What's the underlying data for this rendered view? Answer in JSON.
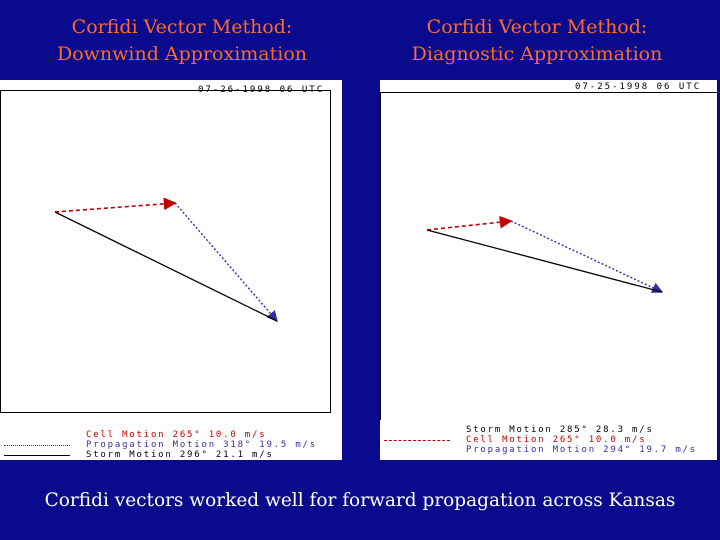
{
  "left_panel": {
    "title_line1": "Corfidi Vector Method:",
    "title_line2": "Downwind Approximation",
    "timestamp": "07-26-1998  06 UTC",
    "legend": [
      {
        "text": "Cell Motion  265°  10.0 m/s",
        "color": "#c00000",
        "style": "dashed"
      },
      {
        "text": "Propagation Motion 318°  19.5 m/s",
        "color": "#3030a0",
        "style": "dotted"
      },
      {
        "text": "Storm Motion  296°  21.1 m/s",
        "color": "#000000",
        "style": "solid"
      }
    ]
  },
  "right_panel": {
    "title_line1": "Corfidi Vector Method:",
    "title_line2": "Diagnostic Approximation",
    "timestamp": "07-25-1998  06 UTC",
    "legend": [
      {
        "text": "Storm Motion  285°  28.3 m/s",
        "color": "#000000",
        "style": "solid"
      },
      {
        "text": "Cell Motion  265°  10.0 m/s",
        "color": "#c00000",
        "style": "dashed"
      },
      {
        "text": "Propagation Motion  294°  19.7 m/s",
        "color": "#3030a0",
        "style": "dotted"
      }
    ]
  },
  "caption": "Corfidi vectors worked well for forward propagation across Kansas",
  "colors": {
    "background": "#0a0a8c",
    "title": "#ff6a2a",
    "cell_motion": "#c00000",
    "propagation_motion": "#3030a0",
    "storm_motion": "#000000"
  }
}
